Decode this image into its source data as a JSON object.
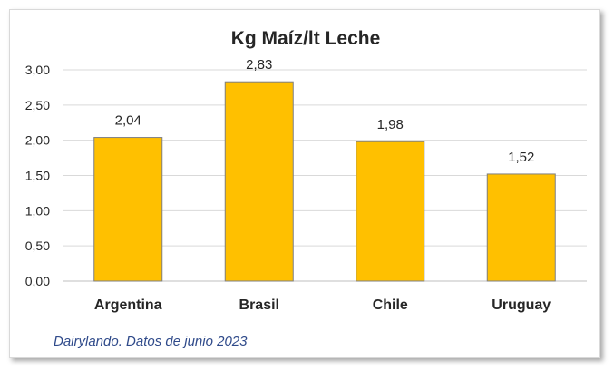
{
  "chart_data": {
    "type": "bar",
    "title": "Kg Maíz/lt Leche",
    "categories": [
      "Argentina",
      "Brasil",
      "Chile",
      "Uruguay"
    ],
    "values": [
      2.04,
      2.83,
      1.98,
      1.52
    ],
    "value_labels": [
      "2,04",
      "2,83",
      "1,98",
      "1,52"
    ],
    "y_ticks": [
      "0,00",
      "0,50",
      "1,00",
      "1,50",
      "2,00",
      "2,50",
      "3,00"
    ],
    "ylim": [
      0,
      3
    ],
    "xlabel": "",
    "ylabel": "",
    "grid": true,
    "legend": "none",
    "source_note": "Dairylando. Datos de junio 2023",
    "colors": {
      "bar": "#FFC000",
      "bar_border": "#7F7F7F",
      "grid": "#D9D9D9",
      "note": "#2F4A8A"
    }
  }
}
